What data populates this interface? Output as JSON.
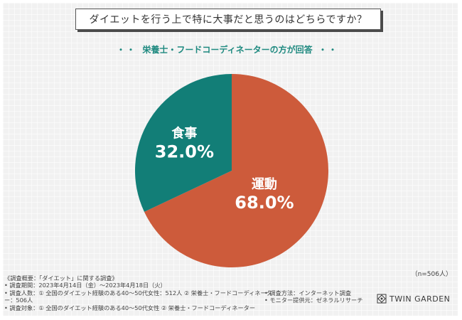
{
  "header": {
    "title": "ダイエットを行う上で特に大事だと思うのはどちらですか？",
    "subtitle_prefix": "・・",
    "subtitle": "栄養士・フードコーディネーターの方が回答",
    "subtitle_suffix": "・・"
  },
  "chart_data": {
    "type": "pie",
    "title": "ダイエットを行う上で特に大事だと思うのはどちらですか？",
    "slices": [
      {
        "label": "運動",
        "value": 68.0,
        "value_text": "68.0%",
        "color": "#cd5b3b"
      },
      {
        "label": "食事",
        "value": 32.0,
        "value_text": "32.0%",
        "color": "#127e77"
      }
    ]
  },
  "sample_note": "（n=506人）",
  "survey": {
    "overview": "《調査概要：「ダイエット」に関する調査》",
    "period": "• 調査期間：2023年4月14日（金）〜2023年4月18日（火）",
    "count": "• 調査人数：① 全国のダイエット経験のある40〜50代女性：512人 ② 栄養士・フードコーディネーター：506人",
    "target": "• 調査対象：① 全国のダイエット経験のある40〜50代女性 ② 栄養士・フードコーディネーター",
    "method": "• 調査方法：インターネット調査",
    "provider": "• モニター提供元：ゼネラルリサーチ"
  },
  "brand": {
    "name": "TWIN GARDEN"
  }
}
